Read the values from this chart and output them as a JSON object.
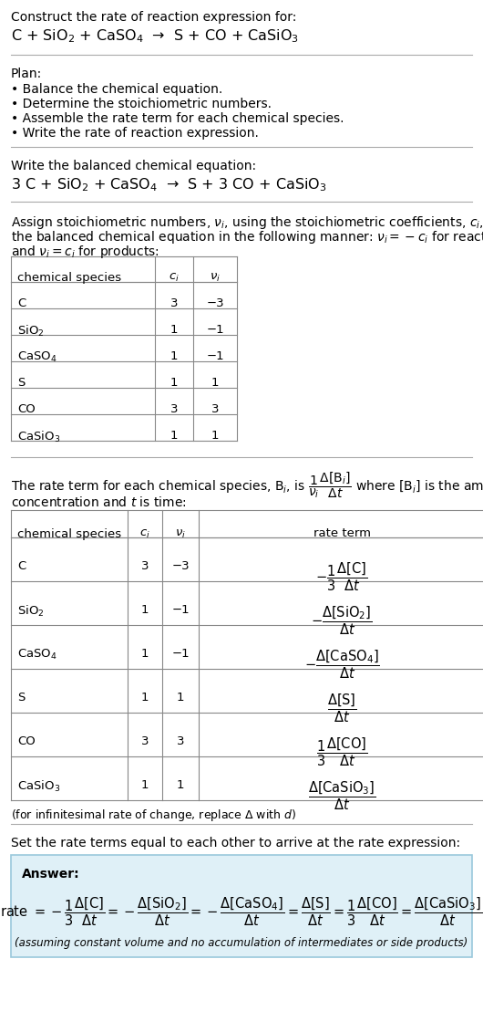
{
  "title_line1": "Construct the rate of reaction expression for:",
  "reaction_unbalanced": "C + SiO$_2$ + CaSO$_4$  →  S + CO + CaSiO$_3$",
  "plan_header": "Plan:",
  "plan_items": [
    "• Balance the chemical equation.",
    "• Determine the stoichiometric numbers.",
    "• Assemble the rate term for each chemical species.",
    "• Write the rate of reaction expression."
  ],
  "balanced_header": "Write the balanced chemical equation:",
  "reaction_balanced": "3 C + SiO$_2$ + CaSO$_4$  →  S + 3 CO + CaSiO$_3$",
  "assign_text1": "Assign stoichiometric numbers, $\\nu_i$, using the stoichiometric coefficients, $c_i$, from",
  "assign_text2": "the balanced chemical equation in the following manner: $\\nu_i = -c_i$ for reactants",
  "assign_text3": "and $\\nu_i = c_i$ for products:",
  "table1_headers": [
    "chemical species",
    "$c_i$",
    "$\\nu_i$"
  ],
  "table1_rows": [
    [
      "C",
      "3",
      "−3"
    ],
    [
      "SiO$_2$",
      "1",
      "−1"
    ],
    [
      "CaSO$_4$",
      "1",
      "−1"
    ],
    [
      "S",
      "1",
      "1"
    ],
    [
      "CO",
      "3",
      "3"
    ],
    [
      "CaSiO$_3$",
      "1",
      "1"
    ]
  ],
  "rate_text1": "The rate term for each chemical species, B$_i$, is $\\dfrac{1}{\\nu_i}\\dfrac{\\Delta[\\mathrm{B}_i]}{\\Delta t}$ where [B$_i$] is the amount",
  "rate_text2": "concentration and $t$ is time:",
  "table2_headers": [
    "chemical species",
    "$c_i$",
    "$\\nu_i$",
    "rate term"
  ],
  "table2_rows": [
    [
      "C",
      "3",
      "−3",
      "$-\\dfrac{1}{3}\\dfrac{\\Delta[\\mathrm{C}]}{\\Delta t}$"
    ],
    [
      "SiO$_2$",
      "1",
      "−1",
      "$-\\dfrac{\\Delta[\\mathrm{SiO_2}]}{\\Delta t}$"
    ],
    [
      "CaSO$_4$",
      "1",
      "−1",
      "$-\\dfrac{\\Delta[\\mathrm{CaSO_4}]}{\\Delta t}$"
    ],
    [
      "S",
      "1",
      "1",
      "$\\dfrac{\\Delta[\\mathrm{S}]}{\\Delta t}$"
    ],
    [
      "CO",
      "3",
      "3",
      "$\\dfrac{1}{3}\\dfrac{\\Delta[\\mathrm{CO}]}{\\Delta t}$"
    ],
    [
      "CaSiO$_3$",
      "1",
      "1",
      "$\\dfrac{\\Delta[\\mathrm{CaSiO_3}]}{\\Delta t}$"
    ]
  ],
  "infinitesimal_note": "(for infinitesimal rate of change, replace Δ with $d$)",
  "set_equal_text": "Set the rate terms equal to each other to arrive at the rate expression:",
  "answer_label": "Answer:",
  "answer_box_color": "#dff0f7",
  "answer_box_border": "#9ac8dc",
  "answer_rate_expr": "rate $= -\\dfrac{1}{3}\\dfrac{\\Delta[\\mathrm{C}]}{\\Delta t} = -\\dfrac{\\Delta[\\mathrm{SiO_2}]}{\\Delta t} = -\\dfrac{\\Delta[\\mathrm{CaSO_4}]}{\\Delta t} = \\dfrac{\\Delta[\\mathrm{S}]}{\\Delta t} = \\dfrac{1}{3}\\dfrac{\\Delta[\\mathrm{CO}]}{\\Delta t} = \\dfrac{\\Delta[\\mathrm{CaSiO_3}]}{\\Delta t}$",
  "answer_note": "(assuming constant volume and no accumulation of intermediates or side products)",
  "bg_color": "#ffffff",
  "text_color": "#000000",
  "separator_color": "#aaaaaa",
  "font_size": 10.0,
  "small_font_size": 9.0,
  "title_font_size": 11.5
}
